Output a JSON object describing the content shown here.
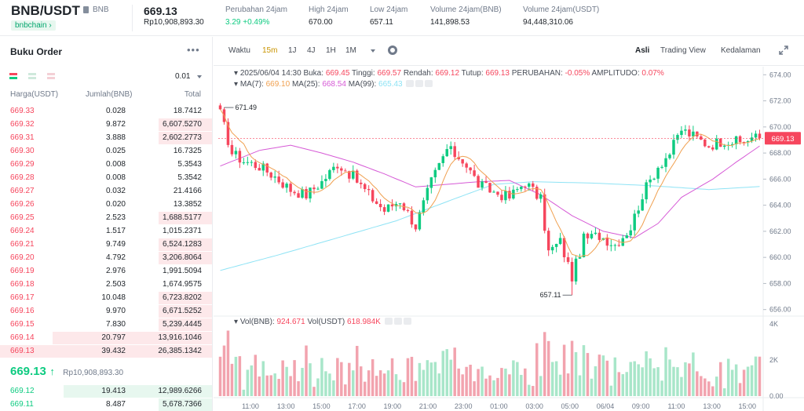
{
  "header": {
    "pair": "BNB/USDT",
    "coin": "BNB",
    "chain": "bnbchain",
    "last_price": "669.13",
    "last_price_idr": "Rp10,908,893.30",
    "stats": [
      {
        "label": "Perubahan 24jam",
        "value": "3.29 +0.49%",
        "up": true
      },
      {
        "label": "High 24jam",
        "value": "670.00",
        "up": false
      },
      {
        "label": "Low 24jam",
        "value": "657.11",
        "up": false
      },
      {
        "label": "Volume 24jam(BNB)",
        "value": "141,898.53",
        "up": false
      },
      {
        "label": "Volume 24jam(USDT)",
        "value": "94,448,310.06",
        "up": false
      }
    ]
  },
  "orderbook": {
    "title": "Buku Order",
    "more": "•••",
    "step": "0.01",
    "columns": {
      "price": "Harga(USDT)",
      "qty": "Jumlah(BNB)",
      "total": "Total"
    },
    "asks": [
      {
        "price": "669.33",
        "qty": "0.028",
        "total": "18.7412",
        "depth": 0.0
      },
      {
        "price": "669.32",
        "qty": "9.872",
        "total": "6,607.5270",
        "depth": 0.25
      },
      {
        "price": "669.31",
        "qty": "3.888",
        "total": "2,602.2773",
        "depth": 0.25
      },
      {
        "price": "669.30",
        "qty": "0.025",
        "total": "16.7325",
        "depth": 0.0
      },
      {
        "price": "669.29",
        "qty": "0.008",
        "total": "5.3543",
        "depth": 0.0
      },
      {
        "price": "669.28",
        "qty": "0.008",
        "total": "5.3542",
        "depth": 0.0
      },
      {
        "price": "669.27",
        "qty": "0.032",
        "total": "21.4166",
        "depth": 0.0
      },
      {
        "price": "669.26",
        "qty": "0.020",
        "total": "13.3852",
        "depth": 0.0
      },
      {
        "price": "669.25",
        "qty": "2.523",
        "total": "1,688.5177",
        "depth": 0.25
      },
      {
        "price": "669.24",
        "qty": "1.517",
        "total": "1,015.2371",
        "depth": 0.0
      },
      {
        "price": "669.21",
        "qty": "9.749",
        "total": "6,524.1283",
        "depth": 0.25
      },
      {
        "price": "669.20",
        "qty": "4.792",
        "total": "3,206.8064",
        "depth": 0.25
      },
      {
        "price": "669.19",
        "qty": "2.976",
        "total": "1,991.5094",
        "depth": 0.0
      },
      {
        "price": "669.18",
        "qty": "2.503",
        "total": "1,674.9575",
        "depth": 0.0
      },
      {
        "price": "669.17",
        "qty": "10.048",
        "total": "6,723.8202",
        "depth": 0.25
      },
      {
        "price": "669.16",
        "qty": "9.970",
        "total": "6,671.5252",
        "depth": 0.25
      },
      {
        "price": "669.15",
        "qty": "7.830",
        "total": "5,239.4445",
        "depth": 0.25
      },
      {
        "price": "669.14",
        "qty": "20.797",
        "total": "13,916.1046",
        "depth": 0.75
      },
      {
        "price": "669.13",
        "qty": "39.432",
        "total": "26,385.1342",
        "depth": 1.0
      }
    ],
    "mid": {
      "price": "669.13",
      "arrow": "↑",
      "idr": "Rp10,908,893.30"
    },
    "bids": [
      {
        "price": "669.12",
        "qty": "19.413",
        "total": "12,989.6266",
        "depth": 0.7
      },
      {
        "price": "669.11",
        "qty": "8.487",
        "total": "5,678.7366",
        "depth": 0.25
      }
    ]
  },
  "toolbar": {
    "intervals": [
      "Waktu",
      "15m",
      "1J",
      "4J",
      "1H",
      "1M"
    ],
    "active_interval": "15m",
    "views": [
      "Asli",
      "Trading View",
      "Kedalaman"
    ],
    "active_view": "Asli"
  },
  "chart_legend": {
    "ohlc": {
      "date": "2025/06/04 14:30",
      "open_label": "Buka:",
      "open": "669.45",
      "high_label": "Tinggi:",
      "high": "669.57",
      "low_label": "Rendah:",
      "low": "669.12",
      "close_label": "Tutup:",
      "close": "669.13",
      "change_label": "PERUBAHAN:",
      "change": "-0.05%",
      "amp_label": "AMPLITUDO:",
      "amp": "0.07%"
    },
    "ma": [
      {
        "label": "MA(7):",
        "value": "669.10",
        "color": "#f0a050"
      },
      {
        "label": "MA(25):",
        "value": "668.54",
        "color": "#d65ad6"
      },
      {
        "label": "MA(99):",
        "value": "665.43",
        "color": "#8ee3f5"
      }
    ],
    "vol": {
      "label": "Vol(BNB):",
      "value": "924.671",
      "label2": "Vol(USDT)",
      "value2": "618.984K"
    }
  },
  "chart_data": {
    "type": "candlestick",
    "price_axis": {
      "min": 655.5,
      "max": 674.5,
      "ticks": [
        "674.00",
        "672.00",
        "670.00",
        "668.00",
        "666.00",
        "664.00",
        "662.00",
        "660.00",
        "658.00",
        "656.00"
      ]
    },
    "volume_axis": {
      "ticks": [
        "4K",
        "2K",
        "0.00"
      ],
      "max": 4000
    },
    "x_ticks": [
      "11:00",
      "13:00",
      "15:00",
      "17:00",
      "19:00",
      "21:00",
      "23:00",
      "01:00",
      "03:00",
      "05:00",
      "06/04",
      "09:00",
      "11:00",
      "13:00",
      "15:00"
    ],
    "current_price": "669.13",
    "max_label": "671.49",
    "min_label": "657.11",
    "colors": {
      "up": "#0ecb81",
      "down": "#f6465d",
      "up_vol": "#a8e6c9",
      "down_vol": "#f2a3ae"
    },
    "close_waypoints": [
      [
        0,
        671.0
      ],
      [
        3,
        668.0
      ],
      [
        6,
        667.4
      ],
      [
        10,
        667.0
      ],
      [
        14,
        666.2
      ],
      [
        18,
        665.2
      ],
      [
        22,
        664.8
      ],
      [
        26,
        665.8
      ],
      [
        30,
        667.2
      ],
      [
        34,
        666.2
      ],
      [
        38,
        664.8
      ],
      [
        42,
        663.6
      ],
      [
        46,
        664.4
      ],
      [
        50,
        662.4
      ],
      [
        54,
        665.8
      ],
      [
        58,
        668.3
      ],
      [
        62,
        667.5
      ],
      [
        66,
        665.6
      ],
      [
        70,
        665.0
      ],
      [
        74,
        664.6
      ],
      [
        78,
        665.8
      ],
      [
        82,
        664.4
      ],
      [
        84,
        660.4
      ],
      [
        87,
        661.2
      ],
      [
        90,
        658.5
      ],
      [
        93,
        661.4
      ],
      [
        97,
        661.7
      ],
      [
        101,
        661.0
      ],
      [
        105,
        662.3
      ],
      [
        108,
        664.8
      ],
      [
        112,
        667.0
      ],
      [
        115,
        668.0
      ],
      [
        118,
        669.8
      ],
      [
        121,
        669.3
      ],
      [
        125,
        668.6
      ],
      [
        129,
        669.0
      ],
      [
        133,
        668.8
      ],
      [
        136,
        669.2
      ],
      [
        138,
        669.13
      ]
    ],
    "ma25_waypoints": [
      [
        0,
        667.0
      ],
      [
        10,
        668.2
      ],
      [
        18,
        668.6
      ],
      [
        26,
        668.0
      ],
      [
        34,
        667.3
      ],
      [
        42,
        666.4
      ],
      [
        50,
        665.4
      ],
      [
        58,
        665.6
      ],
      [
        66,
        665.8
      ],
      [
        74,
        665.9
      ],
      [
        82,
        664.8
      ],
      [
        90,
        663.2
      ],
      [
        98,
        662.0
      ],
      [
        106,
        661.5
      ],
      [
        112,
        662.6
      ],
      [
        118,
        664.6
      ],
      [
        126,
        666.0
      ],
      [
        132,
        667.3
      ],
      [
        138,
        668.54
      ]
    ],
    "ma99_waypoints": [
      [
        0,
        659.0
      ],
      [
        15,
        660.2
      ],
      [
        30,
        661.5
      ],
      [
        45,
        662.8
      ],
      [
        60,
        664.5
      ],
      [
        70,
        665.6
      ],
      [
        80,
        665.8
      ],
      [
        95,
        665.7
      ],
      [
        110,
        665.5
      ],
      [
        125,
        665.2
      ],
      [
        138,
        665.43
      ]
    ],
    "candle_count": 139
  }
}
